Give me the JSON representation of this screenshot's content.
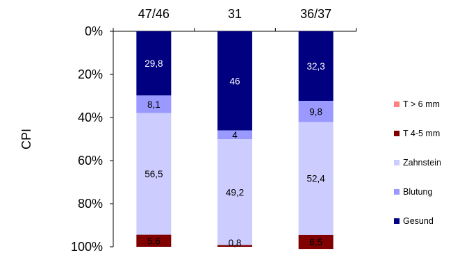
{
  "chart_data": {
    "type": "bar",
    "stacked": true,
    "orientation": "vertical",
    "y_axis_reversed": true,
    "categories": [
      "47/46",
      "31",
      "36/37"
    ],
    "ylabel": "CPI",
    "ylim": [
      0,
      100
    ],
    "yticks": [
      "0%",
      "20%",
      "40%",
      "60%",
      "80%",
      "100%"
    ],
    "grid": false,
    "legend_position": "right",
    "series": [
      {
        "name": "Gesund",
        "color": "#000080",
        "label_color": "#ffffff",
        "values": [
          29.8,
          46,
          32.3
        ],
        "labels": [
          "29,8",
          "46",
          "32,3"
        ]
      },
      {
        "name": "Blutung",
        "color": "#9999ff",
        "label_color": "#000000",
        "values": [
          8.1,
          4,
          9.8
        ],
        "labels": [
          "8,1",
          "4",
          "9,8"
        ]
      },
      {
        "name": "Zahnstein",
        "color": "#ccccff",
        "label_color": "#000000",
        "values": [
          56.5,
          49.2,
          52.4
        ],
        "labels": [
          "56,5",
          "49,2",
          "52,4"
        ]
      },
      {
        "name": "T 4-5 mm",
        "color": "#800000",
        "label_color": "#000000",
        "values": [
          5.6,
          0.8,
          6.5
        ],
        "labels": [
          "5,6",
          "0,8",
          "6,5"
        ]
      },
      {
        "name": "T > 6 mm",
        "color": "#ff8080",
        "label_color": "#000000",
        "values": [
          0,
          0,
          0
        ],
        "labels": [
          "",
          "",
          ""
        ]
      }
    ],
    "legend_order": [
      "T > 6 mm",
      "T 4-5 mm",
      "Zahnstein",
      "Blutung",
      "Gesund"
    ]
  }
}
